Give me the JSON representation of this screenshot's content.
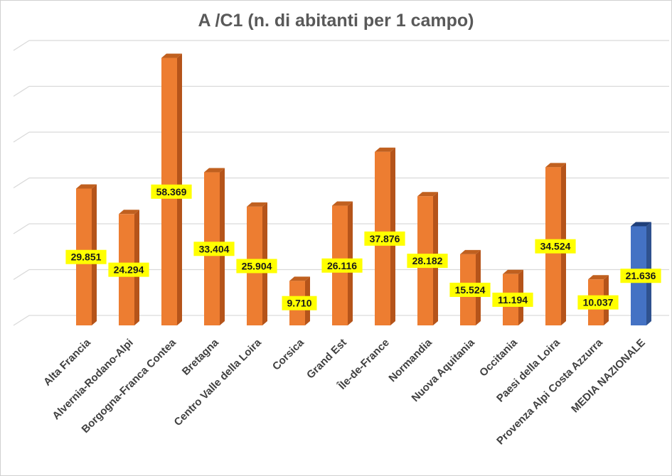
{
  "chart_data": {
    "type": "bar",
    "title": "A /C1 (n. di abitanti per 1 campo)",
    "categories": [
      "Alta Francia",
      "Alvernia-Rodano-Alpi",
      "Borgogna-Franca Contea",
      "Bretagna",
      "Centro Valle della Loira",
      "Corsica",
      "Grand Est",
      "Île-de-France",
      "Normandia",
      "Nuova Aquitania",
      "Occitania",
      "Paesi della Loira",
      "Provenza Alpi Costa Azzurra",
      "MEDIA NAZIONALE"
    ],
    "values": [
      29851,
      24294,
      58369,
      33404,
      25904,
      9710,
      26116,
      37876,
      28182,
      15524,
      11194,
      34524,
      10037,
      21636
    ],
    "data_labels": [
      "29.851",
      "24.294",
      "58.369",
      "33.404",
      "25.904",
      "9.710",
      "26.116",
      "37.876",
      "28.182",
      "15.524",
      "11.194",
      "34.524",
      "10.037",
      "21.636"
    ],
    "highlight_index": 13,
    "colors": {
      "bar": "#ed7d31",
      "bar_side": "#b5541a",
      "bar_top": "#c0601f",
      "highlight": "#4472c4",
      "highlight_side": "#2f528f",
      "highlight_top": "#1f3f7a",
      "label_bg": "#ffff00",
      "grid": "#d9d9d9"
    },
    "ylim": [
      0,
      60000
    ],
    "grid": true,
    "legend": "none",
    "xlabel": "",
    "ylabel": ""
  }
}
